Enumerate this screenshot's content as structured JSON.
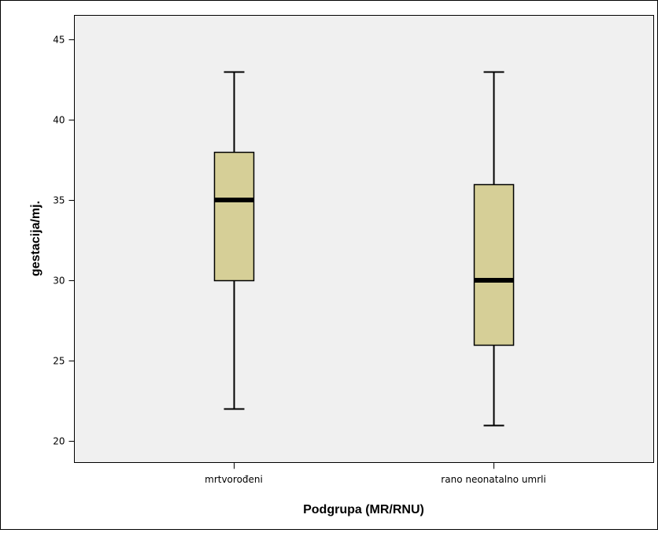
{
  "chart_data": {
    "type": "boxplot",
    "xlabel": "Podgrupa (MR/RNU)",
    "ylabel": "gestacija/mj.",
    "ylim": [
      19.5,
      46.5
    ],
    "yticks": [
      20,
      25,
      30,
      35,
      40,
      45
    ],
    "grid": false,
    "categories": [
      "mrtvorođeni",
      "rano neonatalno umrli"
    ],
    "boxes": [
      {
        "category": "mrtvorođeni",
        "min": 22,
        "q1": 30,
        "median": 35,
        "q3": 38,
        "max": 43
      },
      {
        "category": "rano neonatalno umrli",
        "min": 21,
        "q1": 26,
        "median": 30,
        "q3": 36,
        "max": 43
      }
    ],
    "colors": {
      "plot_background": "#f0f0f0",
      "box_fill": "#d6cf97",
      "line": "#000000"
    }
  }
}
